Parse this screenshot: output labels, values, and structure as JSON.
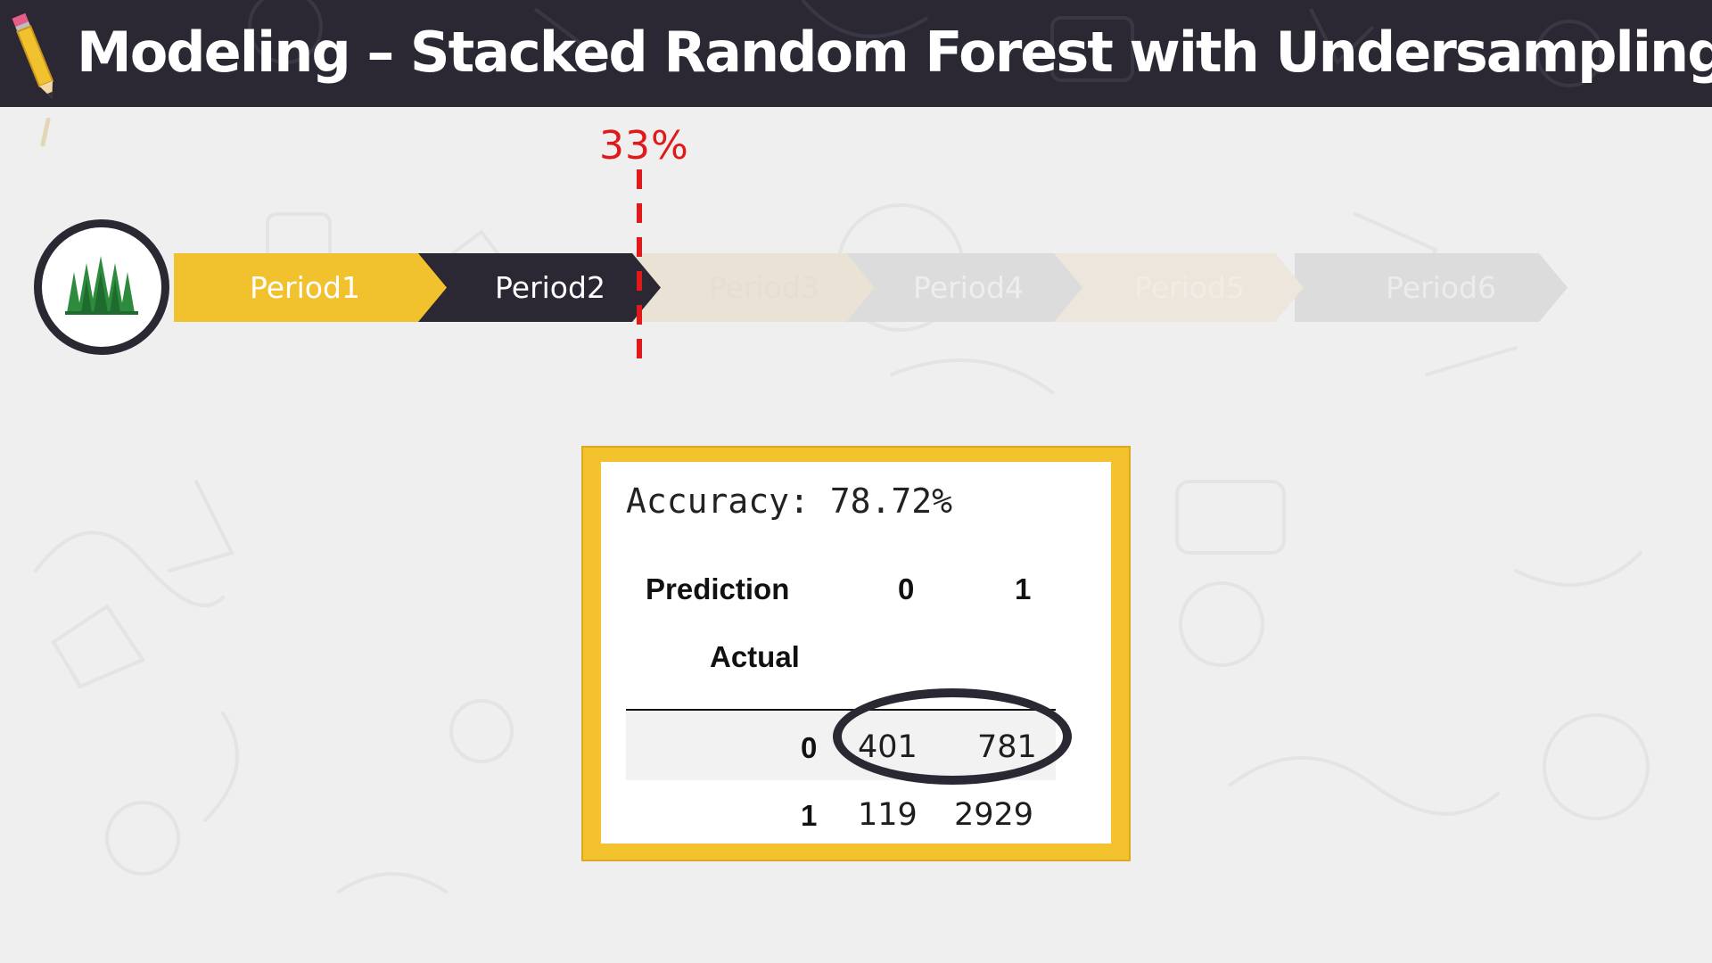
{
  "header": {
    "title": "Modeling – Stacked Random Forest with Undersampling"
  },
  "timeline": {
    "periods": [
      "Period1",
      "Period2",
      "Period3",
      "Period4",
      "Period5",
      "Period6"
    ],
    "cutoff_label": "33%",
    "colors": {
      "active_first": "#f2c12e",
      "active_second": "#2b2834",
      "inactive": "#dcdcdc",
      "cutoff": "#e01a1a"
    }
  },
  "result": {
    "accuracy_text": "Accuracy: 78.72%",
    "confusion_matrix": {
      "prediction_header": "Prediction",
      "actual_header": "Actual",
      "columns": [
        "0",
        "1"
      ],
      "rows": [
        {
          "label": "0",
          "values": [
            "401",
            "781"
          ]
        },
        {
          "label": "1",
          "values": [
            "119",
            "2929"
          ]
        }
      ]
    },
    "border_color": "#f4c22c"
  },
  "icons": {
    "badge": "forest-icon",
    "decoration": "pencil-icon"
  }
}
